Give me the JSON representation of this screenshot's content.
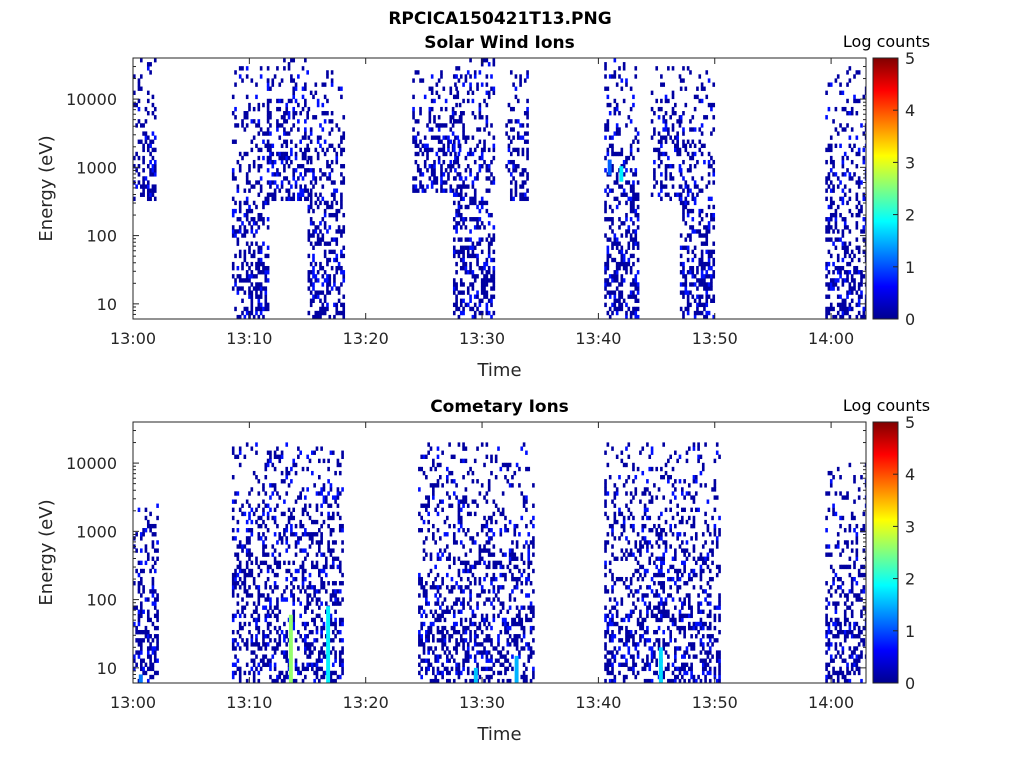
{
  "figure_title": "RPCICA150421T13.PNG",
  "colormap": [
    "#00008f",
    "#0000ff",
    "#0080ff",
    "#00ffff",
    "#80ff80",
    "#ffff00",
    "#ff8000",
    "#ff0000",
    "#800000"
  ],
  "chart_data": [
    {
      "type": "heatmap",
      "title": "Solar Wind Ions",
      "xlabel": "Time",
      "ylabel": "Energy (eV)",
      "x_ticks": [
        "13:00",
        "13:10",
        "13:20",
        "13:30",
        "13:40",
        "13:50",
        "14:00"
      ],
      "x_tick_minutes": [
        0,
        10,
        20,
        30,
        40,
        50,
        60
      ],
      "xlim_minutes": [
        0,
        63
      ],
      "y_scale": "log",
      "y_ticks": [
        "10",
        "100",
        "1000",
        "10000"
      ],
      "y_tick_values": [
        10,
        100,
        1000,
        10000
      ],
      "ylim": [
        6,
        40000
      ],
      "colorbar": {
        "label": "Log counts",
        "ticks": [
          "0",
          "1",
          "2",
          "3",
          "4",
          "5"
        ],
        "range": [
          0,
          5
        ]
      },
      "bursts": [
        {
          "t_start": 0.0,
          "t_end": 1.8,
          "e_min": 300,
          "e_max": 35000,
          "low_fill": 0.0
        },
        {
          "t_start": 8.5,
          "t_end": 11.5,
          "e_min": 6,
          "e_max": 30000,
          "low_fill": 0.8
        },
        {
          "t_start": 11.5,
          "t_end": 15.0,
          "e_min": 300,
          "e_max": 35000,
          "low_fill": 0.0
        },
        {
          "t_start": 15.0,
          "t_end": 18.0,
          "e_min": 6,
          "e_max": 25000,
          "low_fill": 0.8
        },
        {
          "t_start": 24.0,
          "t_end": 28.0,
          "e_min": 400,
          "e_max": 30000,
          "low_fill": 0.0
        },
        {
          "t_start": 27.5,
          "t_end": 31.0,
          "e_min": 6,
          "e_max": 40000,
          "low_fill": 0.7
        },
        {
          "t_start": 32.0,
          "t_end": 34.0,
          "e_min": 300,
          "e_max": 25000,
          "low_fill": 0.0
        },
        {
          "t_start": 40.5,
          "t_end": 43.5,
          "e_min": 6,
          "e_max": 35000,
          "low_fill": 0.8
        },
        {
          "t_start": 44.5,
          "t_end": 47.0,
          "e_min": 300,
          "e_max": 30000,
          "low_fill": 0.0
        },
        {
          "t_start": 47.0,
          "t_end": 50.0,
          "e_min": 6,
          "e_max": 30000,
          "low_fill": 0.7
        },
        {
          "t_start": 59.5,
          "t_end": 63.0,
          "e_min": 6,
          "e_max": 30000,
          "low_fill": 0.8
        }
      ],
      "hot_spots": [
        {
          "t": 41.8,
          "e": 800,
          "level": 1.8
        },
        {
          "t": 40.8,
          "e": 1000,
          "level": 1.1
        }
      ]
    },
    {
      "type": "heatmap",
      "title": "Cometary Ions",
      "xlabel": "Time",
      "ylabel": "Energy (eV)",
      "x_ticks": [
        "13:00",
        "13:10",
        "13:20",
        "13:30",
        "13:40",
        "13:50",
        "14:00"
      ],
      "x_tick_minutes": [
        0,
        10,
        20,
        30,
        40,
        50,
        60
      ],
      "xlim_minutes": [
        0,
        63
      ],
      "y_scale": "log",
      "y_ticks": [
        "10",
        "100",
        "1000",
        "10000"
      ],
      "y_tick_values": [
        10,
        100,
        1000,
        10000
      ],
      "ylim": [
        6,
        40000
      ],
      "colorbar": {
        "label": "Log counts",
        "ticks": [
          "0",
          "1",
          "2",
          "3",
          "4",
          "5"
        ],
        "range": [
          0,
          5
        ]
      },
      "bursts": [
        {
          "t_start": 0.0,
          "t_end": 2.0,
          "e_min": 6,
          "e_max": 3000,
          "low_fill": 0.6
        },
        {
          "t_start": 8.5,
          "t_end": 18.0,
          "e_min": 6,
          "e_max": 20000,
          "low_fill": 0.6
        },
        {
          "t_start": 24.5,
          "t_end": 34.5,
          "e_min": 6,
          "e_max": 20000,
          "low_fill": 0.6
        },
        {
          "t_start": 40.5,
          "t_end": 50.5,
          "e_min": 6,
          "e_max": 20000,
          "low_fill": 0.6
        },
        {
          "t_start": 59.5,
          "t_end": 63.0,
          "e_min": 6,
          "e_max": 10000,
          "low_fill": 0.6
        }
      ],
      "hot_spots": [
        {
          "t": 13.4,
          "e_min": 6,
          "e_max": 60,
          "level": 2.6
        },
        {
          "t": 16.6,
          "e_min": 6,
          "e_max": 80,
          "level": 1.8
        },
        {
          "t": 29.3,
          "e_min": 6,
          "e_max": 10,
          "level": 1.6
        },
        {
          "t": 32.8,
          "e_min": 6,
          "e_max": 15,
          "level": 1.5
        },
        {
          "t": 45.2,
          "e_min": 6,
          "e_max": 20,
          "level": 1.7
        },
        {
          "t": 0.5,
          "e_min": 6,
          "e_max": 8,
          "level": 1.2
        }
      ]
    }
  ]
}
